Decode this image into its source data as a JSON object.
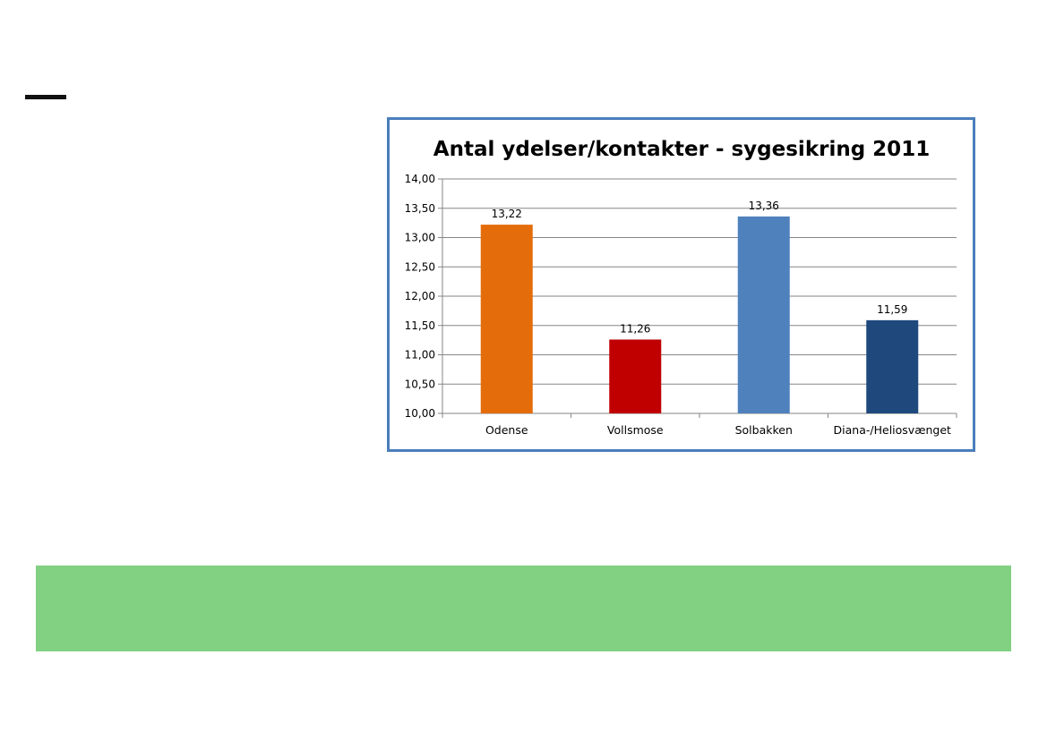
{
  "chart_data": {
    "type": "bar",
    "title": "Antal ydelser/kontakter - sygesikring 2011",
    "categories": [
      "Odense",
      "Vollsmose",
      "Solbakken",
      "Diana-/Heliosvænget"
    ],
    "values": [
      13.22,
      11.26,
      13.36,
      11.59
    ],
    "value_labels": [
      "13,22",
      "11,26",
      "13,36",
      "11,59"
    ],
    "bar_colors": [
      "#e46c0a",
      "#c00000",
      "#4f81bd",
      "#1f497d"
    ],
    "ylim": [
      10,
      14
    ],
    "yticks": [
      10,
      10.5,
      11,
      11.5,
      12,
      12.5,
      13,
      13.5,
      14
    ],
    "ytick_labels": [
      "10,00",
      "10,50",
      "11,00",
      "11,50",
      "12,00",
      "12,50",
      "13,00",
      "13,50",
      "14,00"
    ],
    "xlabel": "",
    "ylabel": "",
    "grid": true,
    "legend": "none",
    "frame_color": "#4a7ebb"
  },
  "colors": {
    "green_band": "#82d183",
    "dash": "#111111"
  }
}
